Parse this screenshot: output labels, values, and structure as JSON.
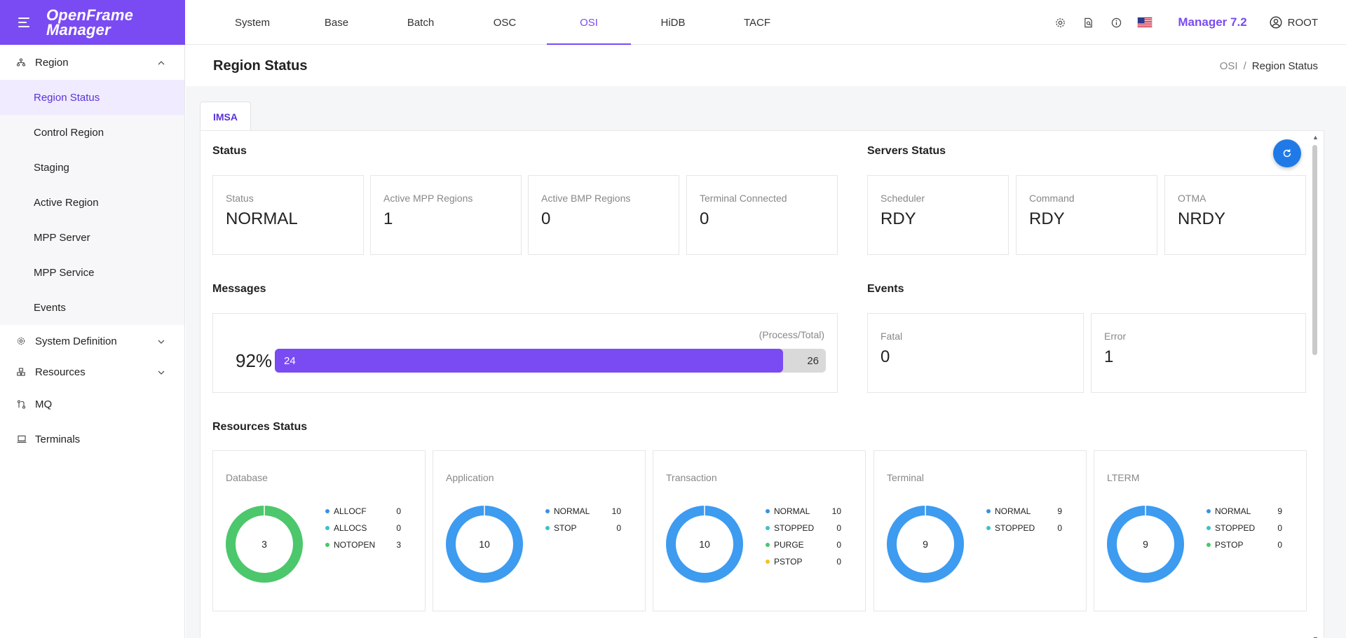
{
  "app": {
    "title_line1": "OpenFrame",
    "title_line2": "Manager"
  },
  "top_tabs": [
    "System",
    "Base",
    "Batch",
    "OSC",
    "OSI",
    "HiDB",
    "TACF"
  ],
  "active_tab": "OSI",
  "version": "Manager 7.2",
  "user": "ROOT",
  "sidebar": {
    "region": "Region",
    "region_items": [
      "Region Status",
      "Control Region",
      "Staging",
      "Active Region",
      "MPP Server",
      "MPP Service",
      "Events"
    ],
    "system_definition": "System Definition",
    "resources": "Resources",
    "mq": "MQ",
    "terminals": "Terminals"
  },
  "page": {
    "title": "Region Status",
    "crumb_parent": "OSI",
    "crumb_sep": "/",
    "crumb_current": "Region Status",
    "tab": "IMSA"
  },
  "status": {
    "title": "Status",
    "cards": [
      {
        "label": "Status",
        "value": "NORMAL"
      },
      {
        "label": "Active MPP Regions",
        "value": "1"
      },
      {
        "label": "Active BMP Regions",
        "value": "0"
      },
      {
        "label": "Terminal Connected",
        "value": "0"
      }
    ]
  },
  "servers": {
    "title": "Servers Status",
    "cards": [
      {
        "label": "Scheduler",
        "value": "RDY"
      },
      {
        "label": "Command",
        "value": "RDY"
      },
      {
        "label": "OTMA",
        "value": "NRDY"
      }
    ]
  },
  "messages": {
    "title": "Messages",
    "note": "(Process/Total)",
    "percent": "92%",
    "process": 24,
    "total": 26
  },
  "events": {
    "title": "Events",
    "cards": [
      {
        "label": "Fatal",
        "value": "0"
      },
      {
        "label": "Error",
        "value": "1"
      }
    ]
  },
  "resources": {
    "title": "Resources Status",
    "cards": [
      {
        "label": "Database",
        "total": "3",
        "color": "#4cc76c",
        "items": [
          {
            "name": "ALLOCF",
            "value": "0",
            "color": "#3b8fe8"
          },
          {
            "name": "ALLOCS",
            "value": "0",
            "color": "#3cc2c6"
          },
          {
            "name": "NOTOPEN",
            "value": "3",
            "color": "#4cc76c"
          }
        ]
      },
      {
        "label": "Application",
        "total": "10",
        "color": "#3d9bf0",
        "items": [
          {
            "name": "NORMAL",
            "value": "10",
            "color": "#3b8fe8"
          },
          {
            "name": "STOP",
            "value": "0",
            "color": "#3cc2c6"
          }
        ]
      },
      {
        "label": "Transaction",
        "total": "10",
        "color": "#3d9bf0",
        "items": [
          {
            "name": "NORMAL",
            "value": "10",
            "color": "#3b8fe8"
          },
          {
            "name": "STOPPED",
            "value": "0",
            "color": "#3cc2c6"
          },
          {
            "name": "PURGE",
            "value": "0",
            "color": "#4cc76c"
          },
          {
            "name": "PSTOP",
            "value": "0",
            "color": "#f2c51c"
          }
        ]
      },
      {
        "label": "Terminal",
        "total": "9",
        "color": "#3d9bf0",
        "items": [
          {
            "name": "NORMAL",
            "value": "9",
            "color": "#3b8fe8"
          },
          {
            "name": "STOPPED",
            "value": "0",
            "color": "#3cc2c6"
          }
        ]
      },
      {
        "label": "LTERM",
        "total": "9",
        "color": "#3d9bf0",
        "items": [
          {
            "name": "NORMAL",
            "value": "9",
            "color": "#3b8fe8"
          },
          {
            "name": "STOPPED",
            "value": "0",
            "color": "#3cc2c6"
          },
          {
            "name": "PSTOP",
            "value": "0",
            "color": "#4cc76c"
          }
        ]
      }
    ]
  },
  "colors": {
    "accent": "#7a4bf3",
    "refresh": "#1f7ae8"
  }
}
